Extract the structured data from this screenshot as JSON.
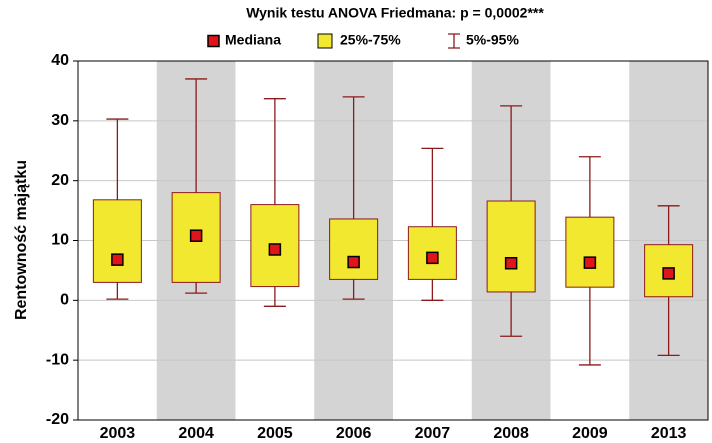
{
  "chart_data": {
    "type": "box",
    "title": "Wynik testu ANOVA Friedmana: p = 0,0002***",
    "legend": {
      "median": "Mediana",
      "box": "25%-75%",
      "whisker": "5%-95%"
    },
    "y_label": "Rentowność majątku",
    "categories": [
      "2003",
      "2004",
      "2005",
      "2006",
      "2007",
      "2008",
      "2009",
      "2013"
    ],
    "median": [
      6.8,
      10.8,
      8.5,
      6.4,
      7.1,
      6.2,
      6.3,
      4.5
    ],
    "q1": [
      3,
      3,
      2.3,
      3.5,
      3.5,
      1.4,
      2.2,
      0.6
    ],
    "q3": [
      16.8,
      18,
      16,
      13.6,
      12.3,
      16.6,
      13.9,
      9.3
    ],
    "p5": [
      0.2,
      1.2,
      -1,
      0.2,
      0,
      -6,
      -10.8,
      -9.2
    ],
    "p95": [
      30.3,
      37,
      33.7,
      34,
      25.4,
      32.5,
      24,
      15.8
    ],
    "ylim": [
      -20,
      40
    ],
    "yticks": [
      -20,
      -10,
      0,
      10,
      20,
      30,
      40
    ],
    "grid": true,
    "median_color": "#e0151a",
    "box_color": "#f2e830",
    "whisker_color": "#8b1a1a",
    "band_colors": [
      "#ffffff",
      "#d4d4d4"
    ]
  }
}
